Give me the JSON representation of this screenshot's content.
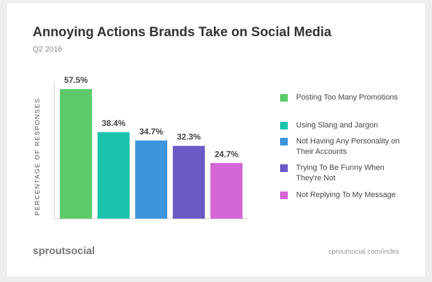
{
  "chart_data": {
    "type": "bar",
    "title": "Annoying Actions Brands Take on Social Media",
    "subtitle": "Q2 2016",
    "y_label": "PERCENTAGE OF RESPONSES",
    "categories": [
      "Posting Too Many Promotions",
      "Using Slang and Jargon",
      "Not Having Any Personality on Their Accounts",
      "Trying To Be Funny When They're Not",
      "Not Replying To My Message"
    ],
    "values": [
      57.5,
      38.4,
      34.7,
      32.3,
      24.7
    ],
    "value_labels": [
      "57.5%",
      "38.4%",
      "34.7%",
      "32.3%",
      "24.7%"
    ],
    "colors": [
      "#5cca6a",
      "#1cc4ae",
      "#3d95dc",
      "#6b5ac6",
      "#d466d6"
    ],
    "legend": "right",
    "brand": "sproutsocial",
    "source": "sproutsocial.com/index"
  }
}
